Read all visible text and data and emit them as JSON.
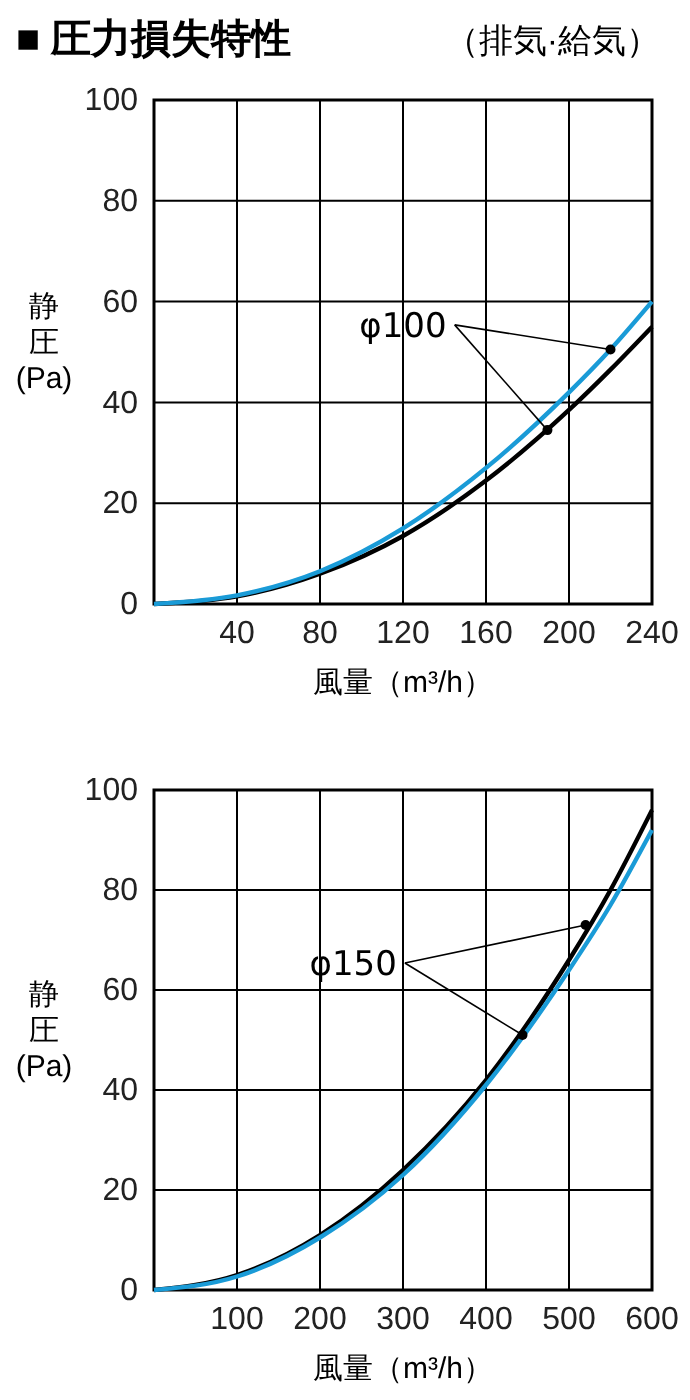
{
  "chart_data": [
    {
      "type": "line",
      "title": "■ 圧力損失特性",
      "subtitle": "（排気·給気）",
      "xlabel": "風量（m³/h）",
      "ylabel": "静圧(Pa)",
      "annotations": [
        {
          "text": "φ100",
          "x": 220,
          "y": 50.5
        }
      ],
      "x": [
        0,
        40,
        80,
        120,
        160,
        200,
        220,
        240
      ],
      "series": [
        {
          "color": "#000000",
          "values": [
            0,
            1.5,
            6,
            13.5,
            24.5,
            38.5,
            46.5,
            55
          ]
        },
        {
          "color": "#1a9bd7",
          "values": [
            0,
            1.7,
            6.5,
            15,
            27,
            42,
            50.5,
            60
          ]
        }
      ],
      "xlim": [
        0,
        240
      ],
      "xticks": [
        {
          "value": 0,
          "label": null
        },
        40,
        80,
        120,
        160,
        200,
        240
      ],
      "ylim": [
        0,
        100
      ],
      "yticks": [
        0,
        20,
        40,
        60,
        80,
        100
      ],
      "grid": true,
      "marker": "none",
      "line_style": "solid"
    },
    {
      "type": "line",
      "xlabel": "風量（m³/h）",
      "ylabel": "静圧(Pa)",
      "annotations": [
        {
          "text": "φ150",
          "x": 520,
          "y": 73
        }
      ],
      "x": [
        0,
        100,
        200,
        300,
        400,
        500,
        550,
        600
      ],
      "series": [
        {
          "color": "#000000",
          "values": [
            0,
            3,
            11,
            24,
            42,
            66,
            80,
            96
          ]
        },
        {
          "color": "#1a9bd7",
          "values": [
            0,
            2.7,
            10.5,
            23,
            41,
            64,
            77,
            92
          ]
        }
      ],
      "xlim": [
        0,
        600
      ],
      "xticks": [
        {
          "value": 0,
          "label": null
        },
        100,
        200,
        300,
        400,
        500,
        600
      ],
      "ylim": [
        0,
        100
      ],
      "yticks": [
        0,
        20,
        40,
        60,
        80,
        100
      ],
      "grid": true,
      "marker": "none",
      "line_style": "solid"
    }
  ]
}
